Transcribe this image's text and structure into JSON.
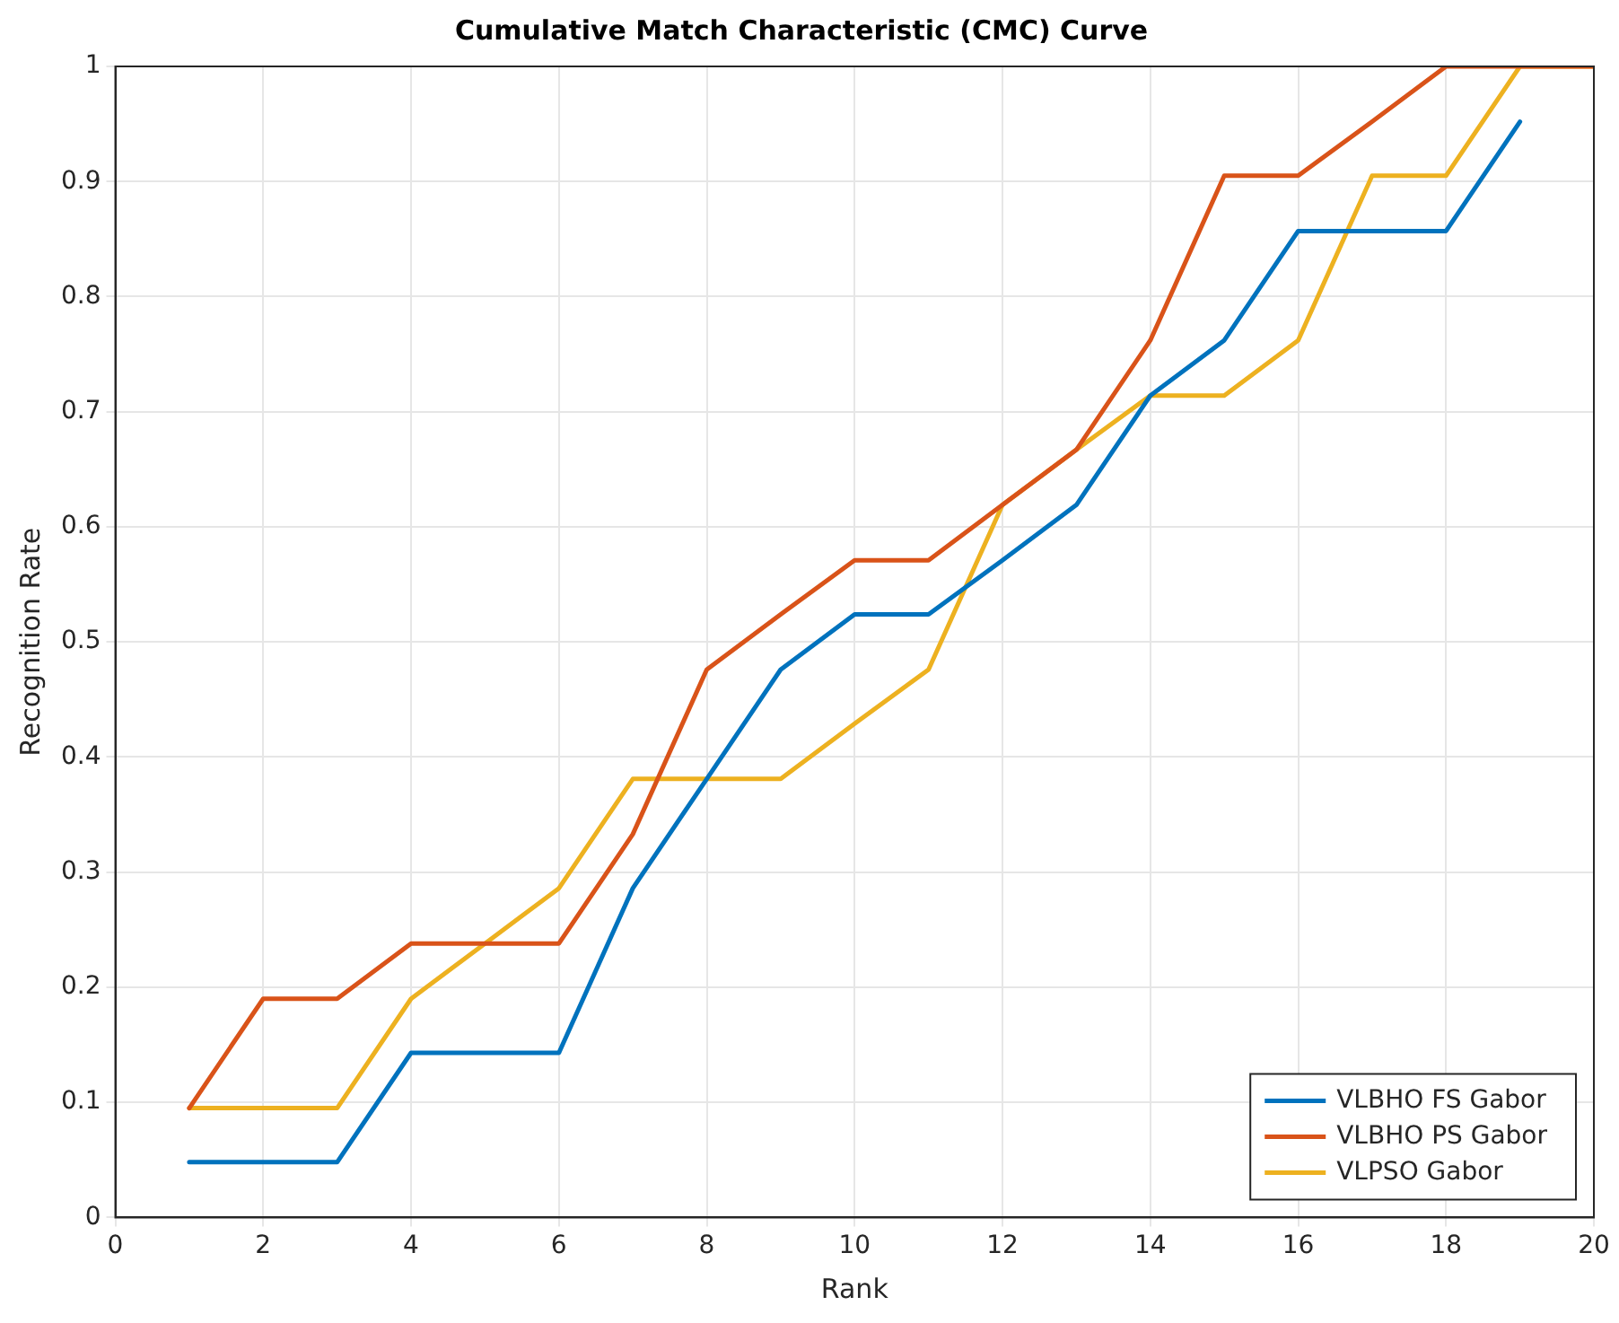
{
  "chart_data": {
    "type": "line",
    "title": "Cumulative Match Characteristic (CMC) Curve",
    "xlabel": "Rank",
    "ylabel": "Recognition Rate",
    "xlim": [
      0,
      20
    ],
    "xticks": [
      0,
      2,
      4,
      6,
      8,
      10,
      12,
      14,
      16,
      18,
      20
    ],
    "ylim": [
      0,
      1
    ],
    "yticks": [
      0,
      0.1,
      0.2,
      0.3,
      0.4,
      0.5,
      0.6,
      0.7,
      0.8,
      0.9,
      1
    ],
    "grid": true,
    "legend": "bottom right",
    "marker": "none",
    "line_style": "solid",
    "series": [
      {
        "name": "VLBHO FS Gabor",
        "color": "#0072bd",
        "x": [
          1,
          2,
          3,
          4,
          5,
          6,
          7,
          8,
          9,
          10,
          11,
          12,
          13,
          14,
          15,
          16,
          17,
          18,
          19
        ],
        "values": [
          0.048,
          0.048,
          0.048,
          0.143,
          0.143,
          0.143,
          0.286,
          0.381,
          0.476,
          0.524,
          0.524,
          0.571,
          0.619,
          0.714,
          0.762,
          0.857,
          0.857,
          0.857,
          0.952
        ]
      },
      {
        "name": "VLBHO PS Gabor",
        "color": "#d95319",
        "x": [
          1,
          2,
          3,
          4,
          5,
          6,
          7,
          8,
          9,
          10,
          11,
          12,
          13,
          14,
          15,
          16,
          17,
          18,
          19,
          20
        ],
        "values": [
          0.095,
          0.19,
          0.19,
          0.238,
          0.238,
          0.238,
          0.333,
          0.476,
          0.524,
          0.571,
          0.571,
          0.619,
          0.667,
          0.762,
          0.905,
          0.905,
          0.952,
          1,
          1,
          1
        ]
      },
      {
        "name": "VLPSO Gabor",
        "color": "#edb120",
        "x": [
          1,
          2,
          3,
          4,
          5,
          6,
          7,
          8,
          9,
          10,
          11,
          12,
          13,
          14,
          15,
          16,
          17,
          18,
          19,
          20
        ],
        "values": [
          0.095,
          0.095,
          0.095,
          0.19,
          0.238,
          0.286,
          0.381,
          0.381,
          0.381,
          0.429,
          0.476,
          0.619,
          0.667,
          0.714,
          0.714,
          0.762,
          0.905,
          0.905,
          1,
          1
        ]
      }
    ]
  }
}
